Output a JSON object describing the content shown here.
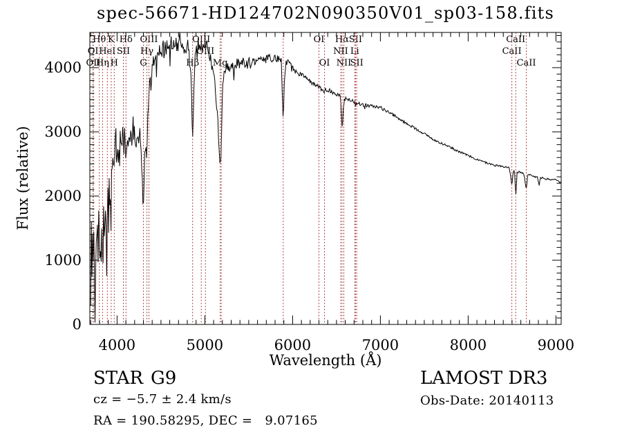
{
  "title": "spec-56671-HD124702N090350V01_sp03-158.fits",
  "colors": {
    "background": "#ffffff",
    "spectrum": "#000000",
    "marker_line": "#a03030",
    "text": "#000000"
  },
  "chart_data": {
    "type": "line",
    "title": "spec-56671-HD124702N090350V01_sp03-158.fits",
    "xlabel": "Wavelength (Å)",
    "ylabel": "Flux (relative)",
    "xlim": [
      3690,
      9060
    ],
    "ylim": [
      0,
      4548
    ],
    "x_ticks": [
      4000,
      5000,
      6000,
      7000,
      8000,
      9000
    ],
    "y_ticks": [
      0,
      1000,
      2000,
      3000,
      4000
    ],
    "x_minor_step": 100,
    "y_minor_step": 100,
    "grid": false,
    "marker_label_rows_y": [
      61,
      78,
      95
    ],
    "series": [
      {
        "name": "spectrum",
        "color": "#000000",
        "control_points": [
          [
            3700,
            300
          ],
          [
            3704,
            1350
          ],
          [
            3708,
            1700
          ],
          [
            3714,
            900
          ],
          [
            3720,
            1250
          ],
          [
            3726,
            700
          ],
          [
            3732,
            1500
          ],
          [
            3738,
            1000
          ],
          [
            3744,
            600
          ],
          [
            3752,
            1400
          ],
          [
            3758,
            800
          ],
          [
            3764,
            1700
          ],
          [
            3772,
            1100
          ],
          [
            3778,
            1850
          ],
          [
            3786,
            900
          ],
          [
            3792,
            1500
          ],
          [
            3798,
            1150
          ],
          [
            3806,
            700
          ],
          [
            3812,
            1400
          ],
          [
            3820,
            850
          ],
          [
            3828,
            1250
          ],
          [
            3835,
            800
          ],
          [
            3842,
            1500
          ],
          [
            3850,
            1750
          ],
          [
            3858,
            1150
          ],
          [
            3866,
            1850
          ],
          [
            3874,
            1300
          ],
          [
            3882,
            1000
          ],
          [
            3889,
            1500
          ],
          [
            3896,
            2050
          ],
          [
            3904,
            1600
          ],
          [
            3912,
            2200
          ],
          [
            3920,
            1800
          ],
          [
            3933,
            1650
          ],
          [
            3941,
            2400
          ],
          [
            3949,
            2800
          ],
          [
            3957,
            2450
          ],
          [
            3963,
            2200
          ],
          [
            3968,
            2500
          ],
          [
            3975,
            2850
          ],
          [
            3985,
            3000
          ],
          [
            3995,
            2750
          ],
          [
            4005,
            2950
          ],
          [
            4015,
            2700
          ],
          [
            4025,
            3000
          ],
          [
            4035,
            2800
          ],
          [
            4045,
            3050
          ],
          [
            4055,
            2750
          ],
          [
            4065,
            2900
          ],
          [
            4072,
            2650
          ],
          [
            4080,
            2950
          ],
          [
            4090,
            2800
          ],
          [
            4102,
            2550
          ],
          [
            4112,
            2900
          ],
          [
            4122,
            3050
          ],
          [
            4132,
            2850
          ],
          [
            4142,
            3000
          ],
          [
            4152,
            2800
          ],
          [
            4162,
            3100
          ],
          [
            4172,
            2900
          ],
          [
            4182,
            3050
          ],
          [
            4192,
            2850
          ],
          [
            4202,
            3000
          ],
          [
            4215,
            2900
          ],
          [
            4228,
            3100
          ],
          [
            4240,
            2950
          ],
          [
            4252,
            3050
          ],
          [
            4264,
            2800
          ],
          [
            4276,
            2600
          ],
          [
            4288,
            2200
          ],
          [
            4300,
            1750
          ],
          [
            4310,
            2450
          ],
          [
            4320,
            2850
          ],
          [
            4330,
            2700
          ],
          [
            4340,
            2550
          ],
          [
            4350,
            3200
          ],
          [
            4360,
            3600
          ],
          [
            4372,
            3850
          ],
          [
            4384,
            3600
          ],
          [
            4396,
            4000
          ],
          [
            4410,
            4150
          ],
          [
            4424,
            3900
          ],
          [
            4438,
            4200
          ],
          [
            4452,
            4050
          ],
          [
            4466,
            4300
          ],
          [
            4480,
            4150
          ],
          [
            4494,
            4350
          ],
          [
            4508,
            4200
          ],
          [
            4522,
            4400
          ],
          [
            4536,
            4250
          ],
          [
            4550,
            4400
          ],
          [
            4565,
            4280
          ],
          [
            4580,
            4420
          ],
          [
            4595,
            4300
          ],
          [
            4610,
            4430
          ],
          [
            4625,
            4320
          ],
          [
            4640,
            4430
          ],
          [
            4655,
            4350
          ],
          [
            4670,
            4420
          ],
          [
            4685,
            4300
          ],
          [
            4700,
            4410
          ],
          [
            4715,
            4460
          ],
          [
            4730,
            4340
          ],
          [
            4745,
            4420
          ],
          [
            4760,
            4300
          ],
          [
            4775,
            4390
          ],
          [
            4790,
            4250
          ],
          [
            4805,
            4370
          ],
          [
            4820,
            4200
          ],
          [
            4835,
            4000
          ],
          [
            4848,
            3600
          ],
          [
            4861,
            2900
          ],
          [
            4872,
            3500
          ],
          [
            4884,
            4050
          ],
          [
            4896,
            4280
          ],
          [
            4910,
            4220
          ],
          [
            4925,
            4370
          ],
          [
            4940,
            4260
          ],
          [
            4955,
            4380
          ],
          [
            4970,
            4290
          ],
          [
            4985,
            4400
          ],
          [
            5000,
            4300
          ],
          [
            5020,
            4360
          ],
          [
            5040,
            4230
          ],
          [
            5060,
            4160
          ],
          [
            5080,
            4050
          ],
          [
            5100,
            3900
          ],
          [
            5125,
            3600
          ],
          [
            5150,
            3080
          ],
          [
            5172,
            2420
          ],
          [
            5186,
            2700
          ],
          [
            5200,
            3650
          ],
          [
            5225,
            3950
          ],
          [
            5250,
            4050
          ],
          [
            5280,
            4000
          ],
          [
            5310,
            4080
          ],
          [
            5340,
            4020
          ],
          [
            5370,
            4080
          ],
          [
            5400,
            4040
          ],
          [
            5430,
            4100
          ],
          [
            5460,
            4060
          ],
          [
            5490,
            4110
          ],
          [
            5520,
            4080
          ],
          [
            5550,
            4130
          ],
          [
            5580,
            4090
          ],
          [
            5610,
            4140
          ],
          [
            5640,
            4100
          ],
          [
            5670,
            4150
          ],
          [
            5700,
            4120
          ],
          [
            5730,
            4160
          ],
          [
            5760,
            4130
          ],
          [
            5790,
            4170
          ],
          [
            5820,
            4130
          ],
          [
            5850,
            4160
          ],
          [
            5870,
            4100
          ],
          [
            5893,
            3150
          ],
          [
            5907,
            3800
          ],
          [
            5920,
            4050
          ],
          [
            5945,
            4100
          ],
          [
            5970,
            4050
          ],
          [
            6000,
            3980
          ],
          [
            6040,
            3940
          ],
          [
            6080,
            3900
          ],
          [
            6120,
            3860
          ],
          [
            6160,
            3820
          ],
          [
            6200,
            3780
          ],
          [
            6240,
            3740
          ],
          [
            6270,
            3710
          ],
          [
            6300,
            3690
          ],
          [
            6330,
            3670
          ],
          [
            6363,
            3640
          ],
          [
            6395,
            3660
          ],
          [
            6430,
            3630
          ],
          [
            6460,
            3610
          ],
          [
            6490,
            3590
          ],
          [
            6520,
            3570
          ],
          [
            6545,
            3540
          ],
          [
            6563,
            3080
          ],
          [
            6580,
            3420
          ],
          [
            6600,
            3530
          ],
          [
            6650,
            3500
          ],
          [
            6700,
            3470
          ],
          [
            6731,
            3450
          ],
          [
            6760,
            3440
          ],
          [
            6800,
            3420
          ],
          [
            6850,
            3410
          ],
          [
            6900,
            3400
          ],
          [
            6950,
            3390
          ],
          [
            7000,
            3380
          ],
          [
            7050,
            3340
          ],
          [
            7100,
            3300
          ],
          [
            7150,
            3260
          ],
          [
            7200,
            3210
          ],
          [
            7250,
            3170
          ],
          [
            7300,
            3130
          ],
          [
            7350,
            3090
          ],
          [
            7400,
            3050
          ],
          [
            7450,
            3010
          ],
          [
            7500,
            2970
          ],
          [
            7550,
            2930
          ],
          [
            7600,
            2880
          ],
          [
            7650,
            2850
          ],
          [
            7700,
            2820
          ],
          [
            7750,
            2790
          ],
          [
            7800,
            2760
          ],
          [
            7850,
            2720
          ],
          [
            7900,
            2690
          ],
          [
            7950,
            2660
          ],
          [
            8000,
            2630
          ],
          [
            8050,
            2600
          ],
          [
            8100,
            2570
          ],
          [
            8150,
            2545
          ],
          [
            8200,
            2520
          ],
          [
            8250,
            2500
          ],
          [
            8300,
            2480
          ],
          [
            8350,
            2470
          ],
          [
            8400,
            2460
          ],
          [
            8440,
            2450
          ],
          [
            8470,
            2440
          ],
          [
            8498,
            2150
          ],
          [
            8512,
            2380
          ],
          [
            8528,
            2400
          ],
          [
            8542,
            1990
          ],
          [
            8558,
            2360
          ],
          [
            8580,
            2380
          ],
          [
            8610,
            2360
          ],
          [
            8635,
            2340
          ],
          [
            8662,
            2110
          ],
          [
            8678,
            2320
          ],
          [
            8700,
            2330
          ],
          [
            8730,
            2310
          ],
          [
            8760,
            2300
          ],
          [
            8790,
            2290
          ],
          [
            8810,
            2160
          ],
          [
            8822,
            2290
          ],
          [
            8850,
            2280
          ],
          [
            8880,
            2260
          ],
          [
            8910,
            2270
          ],
          [
            8940,
            2250
          ],
          [
            8970,
            2260
          ],
          [
            9000,
            2260
          ],
          [
            9030,
            2230
          ],
          [
            9055,
            2210
          ]
        ],
        "noise_envelope": [
          [
            3700,
            420
          ],
          [
            3950,
            300
          ],
          [
            4100,
            230
          ],
          [
            4260,
            190
          ],
          [
            4320,
            170
          ],
          [
            4420,
            150
          ],
          [
            4700,
            120
          ],
          [
            4950,
            105
          ],
          [
            5150,
            90
          ],
          [
            5250,
            80
          ],
          [
            5500,
            70
          ],
          [
            5850,
            58
          ],
          [
            6000,
            48
          ],
          [
            6200,
            42
          ],
          [
            6450,
            34
          ],
          [
            6700,
            28
          ],
          [
            7000,
            24
          ],
          [
            7300,
            20
          ],
          [
            7700,
            17
          ],
          [
            8200,
            15
          ],
          [
            8700,
            14
          ],
          [
            9055,
            13
          ]
        ]
      }
    ],
    "line_markers": [
      {
        "label": "Hθ",
        "wavelength": 3798,
        "row": 1
      },
      {
        "label": "K",
        "wavelength": 3933,
        "row": 1
      },
      {
        "label": "Hδ",
        "wavelength": 4102,
        "row": 1
      },
      {
        "label": "OIII",
        "wavelength": 4363,
        "row": 1
      },
      {
        "label": "OIII",
        "wavelength": 4959,
        "row": 1
      },
      {
        "label": "OI",
        "wavelength": 6300,
        "row": 1
      },
      {
        "label": "Hα",
        "wavelength": 6563,
        "row": 1
      },
      {
        "label": "SII",
        "wavelength": 6717,
        "row": 1
      },
      {
        "label": "CaII",
        "wavelength": 8542,
        "row": 1
      },
      {
        "label": "OI",
        "wavelength": 3726,
        "row": 2
      },
      {
        "label": "HeI",
        "wavelength": 3889,
        "row": 2
      },
      {
        "label": "SII",
        "wavelength": 4072,
        "row": 2
      },
      {
        "label": "Hγ",
        "wavelength": 4340,
        "row": 2
      },
      {
        "label": "OIII",
        "wavelength": 5007,
        "row": 2
      },
      {
        "label": "NII",
        "wavelength": 6548,
        "row": 2
      },
      {
        "label": "Li",
        "wavelength": 6708,
        "row": 2
      },
      {
        "label": "CaII",
        "wavelength": 8498,
        "row": 2
      },
      {
        "label": "OII",
        "wavelength": 3729,
        "row": 3
      },
      {
        "label": "Hη",
        "wavelength": 3835,
        "row": 3
      },
      {
        "label": "H",
        "wavelength": 3968,
        "row": 3
      },
      {
        "label": "G",
        "wavelength": 4300,
        "row": 3
      },
      {
        "label": "Hβ",
        "wavelength": 4861,
        "row": 3
      },
      {
        "label": "Mg",
        "wavelength": 5175,
        "row": 3
      },
      {
        "label": "OI",
        "wavelength": 6363,
        "row": 3
      },
      {
        "label": "NII",
        "wavelength": 6584,
        "row": 3
      },
      {
        "label": "SII",
        "wavelength": 6731,
        "row": 3
      },
      {
        "label": "CaII",
        "wavelength": 8662,
        "row": 3
      }
    ],
    "unlabeled_markers": [
      5893,
      5187
    ]
  },
  "footer": {
    "class_label": "STAR",
    "subclass": "G9",
    "cz_line": "cz = −5.7 ± 2.4 km/s",
    "radec_line": "RA = 190.58295, DEC =   9.07165",
    "survey": "LAMOST DR3",
    "obs_date": "Obs-Date: 20140113"
  }
}
